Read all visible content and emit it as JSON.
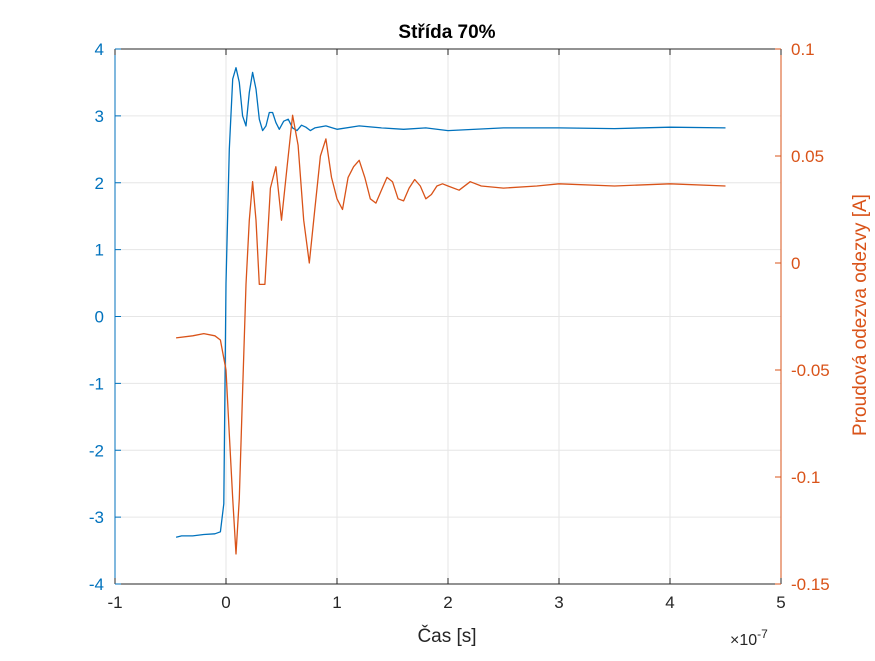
{
  "chart_data": {
    "type": "line",
    "title": "Střída 70%",
    "xlabel": "Čas [s]",
    "x_exponent_base": "×10",
    "x_exponent_power": "-7",
    "ylabel_left": "",
    "ylabel_right": "Proudová odezva odezvy [A]",
    "xlim": [
      -1,
      5
    ],
    "ylim_left": [
      -4,
      4
    ],
    "ylim_right": [
      -0.15,
      0.1
    ],
    "xticks": [
      -1,
      0,
      1,
      2,
      3,
      4,
      5
    ],
    "xtick_labels": [
      "-1",
      "0",
      "1",
      "2",
      "3",
      "4",
      "5"
    ],
    "yticks_left": [
      -4,
      -3,
      -2,
      -1,
      0,
      1,
      2,
      3,
      4
    ],
    "ytick_labels_left": [
      "-4",
      "-3",
      "-2",
      "-1",
      "0",
      "1",
      "2",
      "3",
      "4"
    ],
    "yticks_right": [
      -0.15,
      -0.1,
      -0.05,
      0,
      0.05,
      0.1
    ],
    "ytick_labels_right": [
      "-0.15",
      "-0.1",
      "-0.05",
      "0",
      "0.05",
      "0.1"
    ],
    "grid": true,
    "colors": {
      "left": "#0072BD",
      "right": "#D95319",
      "grid": "#e6e6e6",
      "axis": "#262626"
    },
    "series": [
      {
        "axis": "left",
        "x": [
          -0.45,
          -0.4,
          -0.3,
          -0.2,
          -0.1,
          -0.05,
          -0.02,
          0.0,
          0.03,
          0.06,
          0.09,
          0.12,
          0.15,
          0.18,
          0.21,
          0.24,
          0.27,
          0.3,
          0.33,
          0.36,
          0.39,
          0.42,
          0.45,
          0.48,
          0.52,
          0.56,
          0.6,
          0.64,
          0.68,
          0.72,
          0.76,
          0.8,
          0.9,
          1.0,
          1.2,
          1.4,
          1.6,
          1.8,
          2.0,
          2.5,
          3.0,
          3.5,
          4.0,
          4.5
        ],
        "y": [
          -3.3,
          -3.28,
          -3.28,
          -3.26,
          -3.25,
          -3.22,
          -2.8,
          0.5,
          2.5,
          3.55,
          3.72,
          3.5,
          3.0,
          2.85,
          3.35,
          3.65,
          3.4,
          2.95,
          2.78,
          2.85,
          3.05,
          3.05,
          2.9,
          2.8,
          2.92,
          2.95,
          2.82,
          2.78,
          2.86,
          2.83,
          2.78,
          2.82,
          2.85,
          2.8,
          2.85,
          2.82,
          2.8,
          2.82,
          2.78,
          2.82,
          2.82,
          2.81,
          2.83,
          2.82
        ]
      },
      {
        "axis": "right",
        "x": [
          -0.45,
          -0.3,
          -0.2,
          -0.1,
          -0.05,
          0.0,
          0.03,
          0.06,
          0.09,
          0.12,
          0.15,
          0.18,
          0.21,
          0.24,
          0.27,
          0.3,
          0.35,
          0.4,
          0.45,
          0.5,
          0.55,
          0.6,
          0.65,
          0.7,
          0.75,
          0.8,
          0.85,
          0.9,
          0.95,
          1.0,
          1.05,
          1.1,
          1.15,
          1.2,
          1.25,
          1.3,
          1.35,
          1.4,
          1.45,
          1.5,
          1.55,
          1.6,
          1.65,
          1.7,
          1.75,
          1.8,
          1.85,
          1.9,
          1.95,
          2.0,
          2.1,
          2.2,
          2.3,
          2.5,
          2.8,
          3.0,
          3.5,
          4.0,
          4.5
        ],
        "y": [
          -0.035,
          -0.034,
          -0.033,
          -0.034,
          -0.036,
          -0.05,
          -0.08,
          -0.11,
          -0.136,
          -0.11,
          -0.06,
          -0.01,
          0.02,
          0.038,
          0.02,
          -0.01,
          -0.01,
          0.035,
          0.045,
          0.02,
          0.045,
          0.069,
          0.055,
          0.02,
          0.0,
          0.025,
          0.05,
          0.058,
          0.04,
          0.03,
          0.025,
          0.04,
          0.045,
          0.048,
          0.04,
          0.03,
          0.028,
          0.034,
          0.04,
          0.038,
          0.03,
          0.029,
          0.035,
          0.039,
          0.036,
          0.03,
          0.032,
          0.036,
          0.037,
          0.036,
          0.034,
          0.038,
          0.036,
          0.035,
          0.036,
          0.037,
          0.036,
          0.037,
          0.036
        ]
      }
    ]
  }
}
